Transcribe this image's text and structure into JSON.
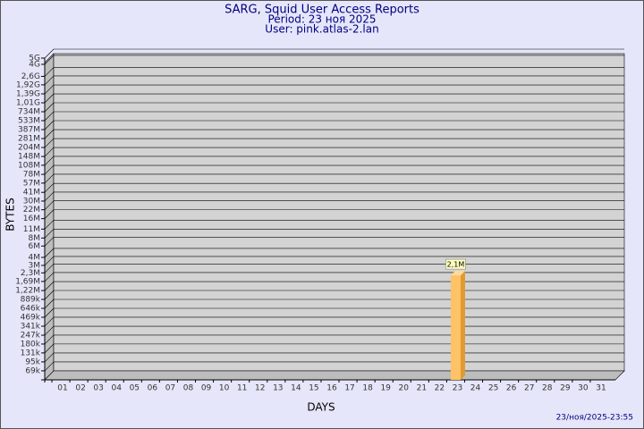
{
  "chart_data": {
    "type": "bar",
    "title": "SARG, Squid User Access Reports",
    "subtitle": "Period: 23 ноя 2025",
    "user": "User: pink.atlas-2.lan",
    "x_label": "DAYS",
    "y_label": "BYTES",
    "timestamp": "23/ноя/2025-23:55",
    "categories": [
      "01",
      "02",
      "03",
      "04",
      "05",
      "06",
      "07",
      "08",
      "09",
      "10",
      "11",
      "12",
      "13",
      "14",
      "15",
      "16",
      "17",
      "18",
      "19",
      "20",
      "21",
      "22",
      "23",
      "24",
      "25",
      "26",
      "27",
      "28",
      "29",
      "30",
      "31"
    ],
    "values": [
      null,
      null,
      null,
      null,
      null,
      null,
      null,
      null,
      null,
      null,
      null,
      null,
      null,
      null,
      null,
      null,
      null,
      null,
      null,
      null,
      null,
      null,
      2100000,
      null,
      null,
      null,
      null,
      null,
      null,
      null,
      null
    ],
    "value_labels": [
      null,
      null,
      null,
      null,
      null,
      null,
      null,
      null,
      null,
      null,
      null,
      null,
      null,
      null,
      null,
      null,
      null,
      null,
      null,
      null,
      null,
      null,
      "2,1M",
      null,
      null,
      null,
      null,
      null,
      null,
      null,
      null
    ],
    "color": "#ffc266",
    "log_scale": true,
    "grid": true,
    "ylim": [
      50000,
      5000000000
    ],
    "yticks": [
      {
        "value": 69000,
        "label": "69k"
      },
      {
        "value": 95000,
        "label": "95k"
      },
      {
        "value": 131000,
        "label": "131k"
      },
      {
        "value": 180000,
        "label": "180k"
      },
      {
        "value": 247000,
        "label": "247k"
      },
      {
        "value": 341000,
        "label": "341k"
      },
      {
        "value": 469000,
        "label": "469k"
      },
      {
        "value": 646000,
        "label": "646k"
      },
      {
        "value": 889000,
        "label": "889k"
      },
      {
        "value": 1220000,
        "label": "1,22M"
      },
      {
        "value": 1690000,
        "label": "1,69M"
      },
      {
        "value": 2300000,
        "label": "2,3M"
      },
      {
        "value": 3000000,
        "label": "3M"
      },
      {
        "value": 4000000,
        "label": "4M"
      },
      {
        "value": 6000000,
        "label": "6M"
      },
      {
        "value": 8000000,
        "label": "8M"
      },
      {
        "value": 11000000,
        "label": "11M"
      },
      {
        "value": 16000000,
        "label": "16M"
      },
      {
        "value": 22000000,
        "label": "22M"
      },
      {
        "value": 30000000,
        "label": "30M"
      },
      {
        "value": 41000000,
        "label": "41M"
      },
      {
        "value": 57000000,
        "label": "57M"
      },
      {
        "value": 78000000,
        "label": "78M"
      },
      {
        "value": 108000000,
        "label": "108M"
      },
      {
        "value": 148000000,
        "label": "148M"
      },
      {
        "value": 204000000,
        "label": "204M"
      },
      {
        "value": 281000000,
        "label": "281M"
      },
      {
        "value": 387000000,
        "label": "387M"
      },
      {
        "value": 533000000,
        "label": "533M"
      },
      {
        "value": 734000000,
        "label": "734M"
      },
      {
        "value": 1010000000,
        "label": "1,01G"
      },
      {
        "value": 1390000000,
        "label": "1,39G"
      },
      {
        "value": 1920000000,
        "label": "1,92G"
      },
      {
        "value": 2600000000,
        "label": "2,6G"
      },
      {
        "value": 4000000000,
        "label": "4G"
      },
      {
        "value": 5000000000,
        "label": "5G"
      }
    ]
  }
}
